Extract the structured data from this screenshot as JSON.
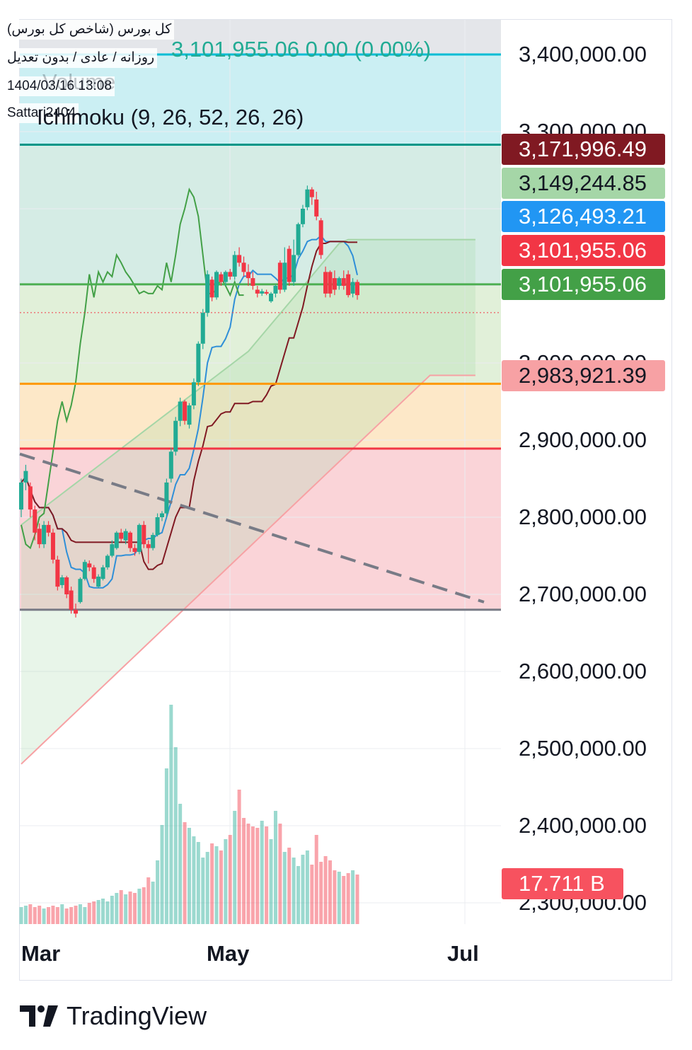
{
  "header": {
    "symbol_name": "کل بورس (شاخص کل بورس)",
    "settings": "روزانه / عادی / بدون تعدیل",
    "datetime": "1404/03/16 13:08",
    "author": "Sattari2404",
    "price_readout": "3,101,955.06  0.00 (0.00%)",
    "indicator": "Ichimoku (9, 26, 52, 26, 26)",
    "volume_label": "Volume"
  },
  "price_tags": [
    {
      "label": "3,171,996.49",
      "bg": "#801922",
      "fg": "#ffffff"
    },
    {
      "label": "3,149,244.85",
      "bg": "#a5d6a7",
      "fg": "#131722"
    },
    {
      "label": "3,126,493.21",
      "bg": "#2196f3",
      "fg": "#ffffff"
    },
    {
      "label": "3,101,955.06",
      "bg": "#f23645",
      "fg": "#ffffff"
    },
    {
      "label": "3,101,955.06",
      "bg": "#43a047",
      "fg": "#ffffff"
    },
    {
      "label": "2,983,921.39",
      "bg": "#f7a1a4",
      "fg": "#131722"
    },
    {
      "label": "17.711 B",
      "bg": "#f7525f",
      "fg": "#ffffff"
    }
  ],
  "axis_labels": [
    "3,400,000.00",
    "3,300,000.00",
    "3,000,000.00",
    "2,900,000.00",
    "2,800,000.00",
    "2,700,000.00",
    "2,600,000.00",
    "2,500,000.00",
    "2,400,000.00",
    "2,300,000.00"
  ],
  "months": [
    "Mar",
    "May",
    "Jul"
  ],
  "brand": "TradingView",
  "colors": {
    "up": "#22ab94",
    "down": "#f23645",
    "tenkan": "#2962ff",
    "kijun": "#801922",
    "lagging": "#43a047",
    "span_a": "#a5d6a7",
    "span_b": "#f7a1a4"
  },
  "chart_data": {
    "type": "candlestick",
    "title": "کل بورس (شاخص کل بورس)",
    "ylim": [
      2300000,
      3400000
    ],
    "horizontal_levels": [
      3400000,
      3283000,
      3101955.06,
      2973000,
      2889000,
      2680000
    ],
    "dashed_trendline": [
      2882000,
      2690000
    ],
    "last_close": 3101955.06,
    "ichimoku": {
      "tenkan": 3126493.21,
      "kijun": 3171996.49,
      "span_a": 3149244.85,
      "span_b": 2983921.39,
      "lagging": 3101955.06
    },
    "volume_last": "17.711 B",
    "candles": [
      [
        2810000,
        2845000,
        2800000,
        2850000
      ],
      [
        2845000,
        2860000,
        2835000,
        2868000
      ],
      [
        2840000,
        2810000,
        2800000,
        2845000
      ],
      [
        2810000,
        2780000,
        2770000,
        2815000
      ],
      [
        2785000,
        2765000,
        2760000,
        2792000
      ],
      [
        2765000,
        2790000,
        2760000,
        2795000
      ],
      [
        2790000,
        2780000,
        2775000,
        2795000
      ],
      [
        2780000,
        2745000,
        2740000,
        2785000
      ],
      [
        2745000,
        2710000,
        2705000,
        2750000
      ],
      [
        2712000,
        2722000,
        2708000,
        2725000
      ],
      [
        2722000,
        2700000,
        2695000,
        2724000
      ],
      [
        2705000,
        2680000,
        2675000,
        2710000
      ],
      [
        2680000,
        2675000,
        2670000,
        2688000
      ],
      [
        2690000,
        2720000,
        2688000,
        2722000
      ],
      [
        2720000,
        2742000,
        2718000,
        2745000
      ],
      [
        2740000,
        2735000,
        2730000,
        2744000
      ],
      [
        2735000,
        2720000,
        2715000,
        2738000
      ],
      [
        2710000,
        2723000,
        2708000,
        2726000
      ],
      [
        2720000,
        2735000,
        2718000,
        2738000
      ],
      [
        2735000,
        2750000,
        2732000,
        2752000
      ],
      [
        2750000,
        2765000,
        2748000,
        2770000
      ],
      [
        2760000,
        2780000,
        2758000,
        2782000
      ],
      [
        2780000,
        2772000,
        2768000,
        2785000
      ],
      [
        2770000,
        2782000,
        2765000,
        2785000
      ],
      [
        2780000,
        2760000,
        2755000,
        2782000
      ],
      [
        2760000,
        2755000,
        2750000,
        2765000
      ],
      [
        2755000,
        2790000,
        2752000,
        2792000
      ],
      [
        2790000,
        2765000,
        2760000,
        2795000
      ],
      [
        2765000,
        2760000,
        2740000,
        2770000
      ],
      [
        2760000,
        2777000,
        2757000,
        2780000
      ],
      [
        2777000,
        2800000,
        2775000,
        2805000
      ],
      [
        2800000,
        2805000,
        2795000,
        2808000
      ],
      [
        2805000,
        2845000,
        2800000,
        2850000
      ],
      [
        2850000,
        2885000,
        2845000,
        2890000
      ],
      [
        2885000,
        2925000,
        2880000,
        2930000
      ],
      [
        2925000,
        2950000,
        2918000,
        2955000
      ],
      [
        2950000,
        2925000,
        2920000,
        2952000
      ],
      [
        2920000,
        2945000,
        2915000,
        2948000
      ],
      [
        2945000,
        2975000,
        2940000,
        2980000
      ],
      [
        2975000,
        3025000,
        2970000,
        3028000
      ],
      [
        3025000,
        3065000,
        3018000,
        3070000
      ],
      [
        3065000,
        3115000,
        3060000,
        3120000
      ],
      [
        3108000,
        3085000,
        3080000,
        3112000
      ],
      [
        3085000,
        3118000,
        3082000,
        3120000
      ],
      [
        3115000,
        3105000,
        3100000,
        3118000
      ],
      [
        3105000,
        3118000,
        3100000,
        3120000
      ],
      [
        3118000,
        3112000,
        3108000,
        3122000
      ],
      [
        3112000,
        3140000,
        3108000,
        3145000
      ],
      [
        3140000,
        3130000,
        3125000,
        3150000
      ],
      [
        3130000,
        3118000,
        3112000,
        3138000
      ],
      [
        3118000,
        3110000,
        3100000,
        3128000
      ],
      [
        3110000,
        3100000,
        3095000,
        3118000
      ],
      [
        3095000,
        3090000,
        3085000,
        3100000
      ],
      [
        3090000,
        3093000,
        3087000,
        3096000
      ],
      [
        3092000,
        3090000,
        3088000,
        3095000
      ],
      [
        3080000,
        3090000,
        3078000,
        3092000
      ],
      [
        3090000,
        3100000,
        3085000,
        3102000
      ],
      [
        3130000,
        3095000,
        3090000,
        3133000
      ],
      [
        3095000,
        3130000,
        3092000,
        3150000
      ],
      [
        3148000,
        3105000,
        3100000,
        3152000
      ],
      [
        3105000,
        3140000,
        3100000,
        3160000
      ],
      [
        3140000,
        3180000,
        3138000,
        3182000
      ],
      [
        3180000,
        3200000,
        3176000,
        3205000
      ],
      [
        3202000,
        3225000,
        3198000,
        3230000
      ],
      [
        3225000,
        3215000,
        3205000,
        3228000
      ],
      [
        3212000,
        3190000,
        3185000,
        3222000
      ],
      [
        3185000,
        3140000,
        3135000,
        3188000
      ],
      [
        3118000,
        3090000,
        3085000,
        3125000
      ],
      [
        3118000,
        3090000,
        3085000,
        3120000
      ],
      [
        3110000,
        3095000,
        3088000,
        3120000
      ],
      [
        3100000,
        3110000,
        3095000,
        3112000
      ],
      [
        3110000,
        3100000,
        3095000,
        3120000
      ],
      [
        3115000,
        3088000,
        3085000,
        3120000
      ],
      [
        3090000,
        3105000,
        3085000,
        3110000
      ],
      [
        3105000,
        3088000,
        3082000,
        3108000
      ]
    ]
  }
}
